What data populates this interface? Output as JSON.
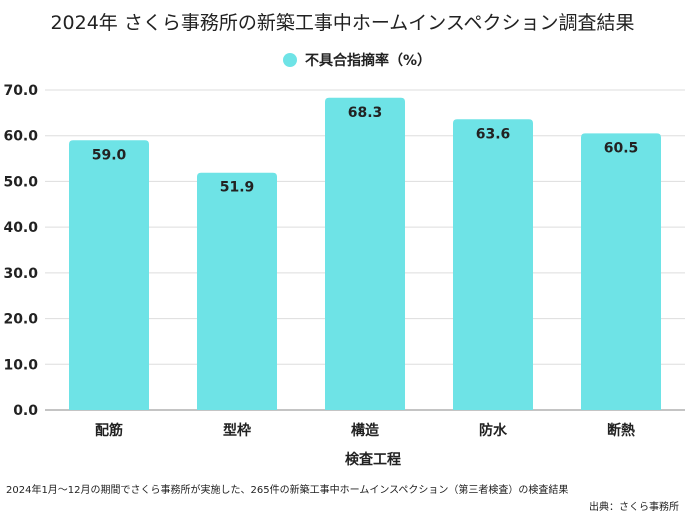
{
  "title": "2024年 さくら事務所の新築工事中ホームインスペクション調査結果",
  "footnote": "2024年1月〜12月の期間でさくら事務所が実施した、265件の新築工事中ホームインスペクション（第三者検査）の検査結果",
  "source": "出典：さくら事務所",
  "chart_data": {
    "type": "bar",
    "title": "2024年 さくら事務所の新築工事中ホームインスペクション調査結果",
    "xlabel": "検査工程",
    "ylabel": "",
    "categories": [
      "配筋",
      "型枠",
      "構造",
      "防水",
      "断熱"
    ],
    "series": [
      {
        "name": "不具合指摘率（%）",
        "values": [
          59.0,
          51.9,
          68.3,
          63.6,
          60.5
        ]
      }
    ],
    "ylim": [
      0,
      70
    ],
    "yticks": [
      "0.0",
      "10.0",
      "20.0",
      "30.0",
      "40.0",
      "50.0",
      "60.0",
      "70.0"
    ],
    "grid": true,
    "legend": "top",
    "color": "#6ee3e6"
  }
}
